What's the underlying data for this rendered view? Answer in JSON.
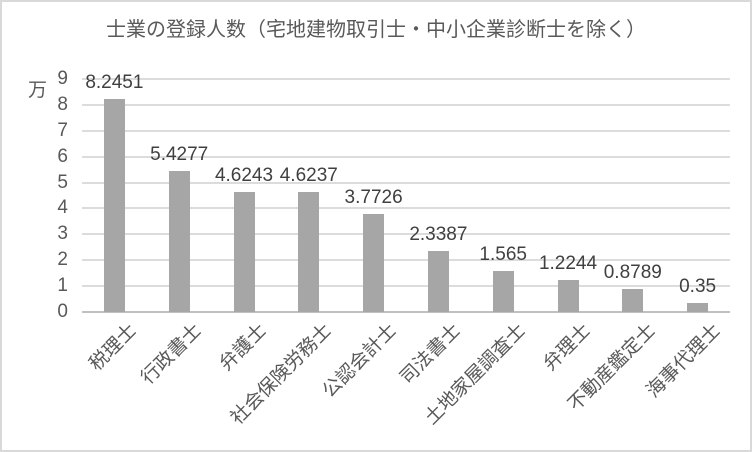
{
  "chart_data": {
    "type": "bar",
    "title": "士業の登録人数（宅地建物取引士・中小企業診断士を除く）",
    "unit_label": "万",
    "categories": [
      "税理士",
      "行政書士",
      "弁護士",
      "社会保険労務士",
      "公認会計士",
      "司法書士",
      "土地家屋調査士",
      "弁理士",
      "不動産鑑定士",
      "海事代理士"
    ],
    "values": [
      8.2451,
      5.4277,
      4.6243,
      4.6237,
      3.7726,
      2.3387,
      1.565,
      1.2244,
      0.8789,
      0.35
    ],
    "value_labels": [
      "8.2451",
      "5.4277",
      "4.6243",
      "4.6237",
      "3.7726",
      "2.3387",
      "1.565",
      "1.2244",
      "0.8789",
      "0.35"
    ],
    "xlabel": "",
    "ylabel": "万",
    "ylim": [
      0,
      9
    ],
    "ytick_step": 1,
    "yticks": [
      "0",
      "1",
      "2",
      "3",
      "4",
      "5",
      "6",
      "7",
      "8",
      "9"
    ],
    "grid": true,
    "legend": "none",
    "colors": {
      "bar": "#a6a6a6",
      "gridline": "#dcdcdc",
      "axis_line": "#c0c0c0",
      "axis_text": "#595959",
      "data_label": "#404040",
      "border": "#d9d9d9"
    }
  }
}
